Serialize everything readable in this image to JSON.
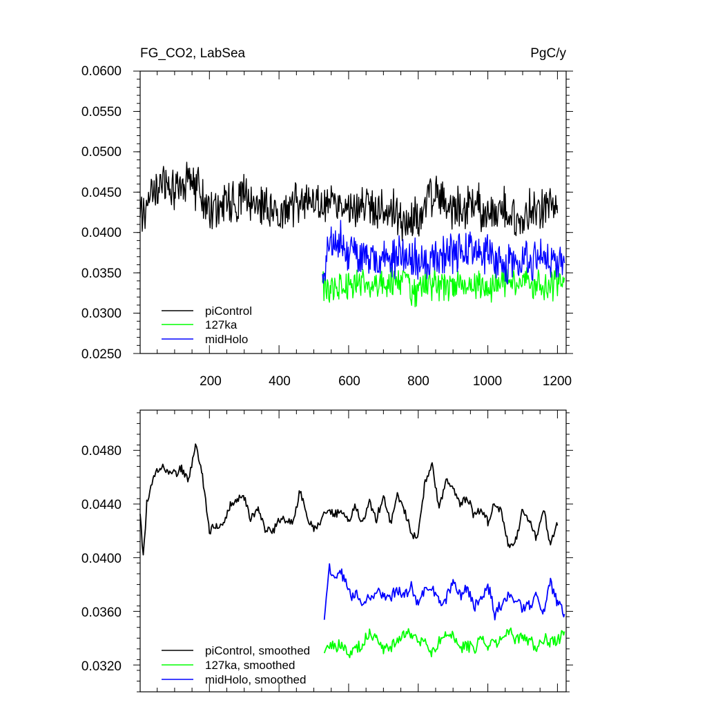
{
  "chart_data": [
    {
      "type": "line",
      "title_left": "FG_CO2, LabSea",
      "title_right": "PgC/y",
      "xlim": [
        1,
        1225
      ],
      "ylim": [
        0.025,
        0.06
      ],
      "x_ticks": [
        200,
        400,
        600,
        800,
        1000,
        1200
      ],
      "x_tick_labels": [
        "200",
        "400",
        "600",
        "800",
        "1000",
        "1200"
      ],
      "y_ticks": [
        0.025,
        0.03,
        0.035,
        0.04,
        0.045,
        0.05,
        0.055,
        0.06
      ],
      "y_tick_labels": [
        "0.0250",
        "0.0300",
        "0.0350",
        "0.0400",
        "0.0450",
        "0.0500",
        "0.0550",
        "0.0600"
      ],
      "legend_position": "bottom-left",
      "series": [
        {
          "name": "piControl",
          "color": "#000000",
          "x": [
            1,
            25,
            50,
            75,
            100,
            125,
            150,
            175,
            200,
            225,
            250,
            275,
            300,
            325,
            350,
            375,
            400,
            425,
            450,
            475,
            500,
            525,
            550,
            575,
            600,
            625,
            650,
            675,
            700,
            725,
            750,
            775,
            800,
            825,
            850,
            875,
            900,
            925,
            950,
            975,
            1000,
            1025,
            1050,
            1075,
            1100,
            1125,
            1150,
            1175,
            1200
          ],
          "values": [
            0.0415,
            0.0445,
            0.0455,
            0.0462,
            0.0458,
            0.0462,
            0.0458,
            0.0448,
            0.0432,
            0.0428,
            0.0438,
            0.0442,
            0.0446,
            0.0432,
            0.0432,
            0.0436,
            0.0422,
            0.0432,
            0.0438,
            0.0442,
            0.044,
            0.0436,
            0.0438,
            0.0432,
            0.0434,
            0.0428,
            0.0432,
            0.0426,
            0.043,
            0.0426,
            0.042,
            0.0412,
            0.0416,
            0.0432,
            0.0452,
            0.0436,
            0.043,
            0.0426,
            0.043,
            0.0432,
            0.0428,
            0.0422,
            0.0428,
            0.042,
            0.0414,
            0.0426,
            0.0436,
            0.0428,
            0.0424
          ]
        },
        {
          "name": "127ka",
          "color": "#00ff00",
          "x": [
            525,
            550,
            575,
            600,
            625,
            650,
            675,
            700,
            725,
            750,
            775,
            800,
            825,
            850,
            875,
            900,
            925,
            950,
            975,
            1000,
            1025,
            1050,
            1075,
            1100,
            1125,
            1150,
            1175,
            1200,
            1220
          ],
          "values": [
            0.0335,
            0.0326,
            0.0336,
            0.0332,
            0.0334,
            0.0331,
            0.0335,
            0.0334,
            0.0337,
            0.0336,
            0.0332,
            0.0327,
            0.0334,
            0.0337,
            0.0332,
            0.0336,
            0.0333,
            0.0338,
            0.0336,
            0.0331,
            0.0338,
            0.0339,
            0.0337,
            0.0339,
            0.0338,
            0.0333,
            0.0331,
            0.0337,
            0.0344
          ]
        },
        {
          "name": "midHolo",
          "color": "#0000ff",
          "x": [
            525,
            550,
            575,
            600,
            625,
            650,
            675,
            700,
            725,
            750,
            775,
            800,
            825,
            850,
            875,
            900,
            925,
            950,
            975,
            1000,
            1025,
            1050,
            1075,
            1100,
            1125,
            1150,
            1175,
            1200,
            1220
          ],
          "values": [
            0.0355,
            0.0385,
            0.0388,
            0.0376,
            0.0372,
            0.0368,
            0.0362,
            0.0372,
            0.0366,
            0.0369,
            0.0376,
            0.0368,
            0.0362,
            0.0368,
            0.0374,
            0.0374,
            0.0382,
            0.0379,
            0.0372,
            0.0376,
            0.0364,
            0.0362,
            0.0364,
            0.0368,
            0.0364,
            0.0362,
            0.0368,
            0.0366,
            0.0362
          ]
        }
      ]
    },
    {
      "type": "line",
      "xlim": [
        1,
        1225
      ],
      "ylim": [
        0.03,
        0.051
      ],
      "x_ticks": [
        200,
        400,
        600,
        800,
        1000,
        1200
      ],
      "y_ticks": [
        0.032,
        0.036,
        0.04,
        0.044,
        0.048
      ],
      "y_tick_labels": [
        "0.0320",
        "0.0360",
        "0.0400",
        "0.0440",
        "0.0480"
      ],
      "legend_position": "bottom-left",
      "series": [
        {
          "name": "piControl, smoothed",
          "color": "#000000",
          "x": [
            1,
            10,
            20,
            40,
            60,
            80,
            100,
            120,
            140,
            160,
            180,
            200,
            220,
            240,
            260,
            280,
            300,
            320,
            340,
            360,
            380,
            400,
            420,
            440,
            460,
            480,
            500,
            520,
            540,
            560,
            580,
            600,
            620,
            640,
            660,
            680,
            700,
            720,
            740,
            760,
            780,
            800,
            820,
            840,
            860,
            880,
            900,
            920,
            940,
            960,
            980,
            1000,
            1020,
            1040,
            1060,
            1080,
            1100,
            1120,
            1140,
            1160,
            1180,
            1200
          ],
          "values": [
            0.0431,
            0.04,
            0.044,
            0.0462,
            0.0466,
            0.0465,
            0.0462,
            0.0466,
            0.0458,
            0.0484,
            0.0462,
            0.0419,
            0.0423,
            0.0424,
            0.0439,
            0.0444,
            0.0445,
            0.0428,
            0.0437,
            0.0422,
            0.0419,
            0.0429,
            0.0428,
            0.0426,
            0.045,
            0.0431,
            0.0421,
            0.0428,
            0.0435,
            0.0431,
            0.0435,
            0.0427,
            0.0438,
            0.0425,
            0.0441,
            0.0428,
            0.0447,
            0.0425,
            0.0448,
            0.0435,
            0.0418,
            0.0416,
            0.0457,
            0.0469,
            0.0437,
            0.0458,
            0.0451,
            0.0438,
            0.0445,
            0.0431,
            0.0436,
            0.0426,
            0.0442,
            0.0433,
            0.0408,
            0.0412,
            0.0435,
            0.0428,
            0.0415,
            0.0436,
            0.0409,
            0.0424
          ]
        },
        {
          "name": "127ka, smoothed",
          "color": "#00ff00",
          "x": [
            530,
            545,
            560,
            580,
            600,
            620,
            640,
            660,
            680,
            700,
            720,
            740,
            760,
            780,
            800,
            820,
            840,
            860,
            880,
            900,
            920,
            940,
            960,
            980,
            1000,
            1020,
            1040,
            1060,
            1080,
            1100,
            1120,
            1140,
            1160,
            1180,
            1200,
            1220
          ],
          "values": [
            0.0331,
            0.0336,
            0.0334,
            0.0336,
            0.0328,
            0.0333,
            0.0334,
            0.0344,
            0.034,
            0.0331,
            0.0333,
            0.0339,
            0.0343,
            0.0343,
            0.0339,
            0.0339,
            0.0328,
            0.0338,
            0.0341,
            0.0342,
            0.0331,
            0.0335,
            0.0332,
            0.0341,
            0.0335,
            0.0336,
            0.034,
            0.0346,
            0.0337,
            0.0343,
            0.0338,
            0.033,
            0.0339,
            0.0337,
            0.0337,
            0.0345
          ]
        },
        {
          "name": "midHolo, smoothed",
          "color": "#0000ff",
          "x": [
            530,
            545,
            560,
            580,
            600,
            620,
            640,
            660,
            680,
            700,
            720,
            740,
            760,
            780,
            800,
            820,
            840,
            860,
            880,
            900,
            920,
            940,
            960,
            980,
            1000,
            1020,
            1040,
            1060,
            1080,
            1100,
            1120,
            1140,
            1160,
            1180,
            1200,
            1220
          ],
          "values": [
            0.0352,
            0.0393,
            0.0384,
            0.0388,
            0.0374,
            0.0371,
            0.0368,
            0.0371,
            0.0372,
            0.0374,
            0.0371,
            0.0374,
            0.0372,
            0.0378,
            0.0364,
            0.0376,
            0.0378,
            0.0366,
            0.037,
            0.0381,
            0.0372,
            0.0378,
            0.0363,
            0.037,
            0.0381,
            0.0357,
            0.0366,
            0.0374,
            0.0368,
            0.0362,
            0.0365,
            0.0372,
            0.0357,
            0.0382,
            0.0366,
            0.0358
          ]
        }
      ]
    }
  ]
}
